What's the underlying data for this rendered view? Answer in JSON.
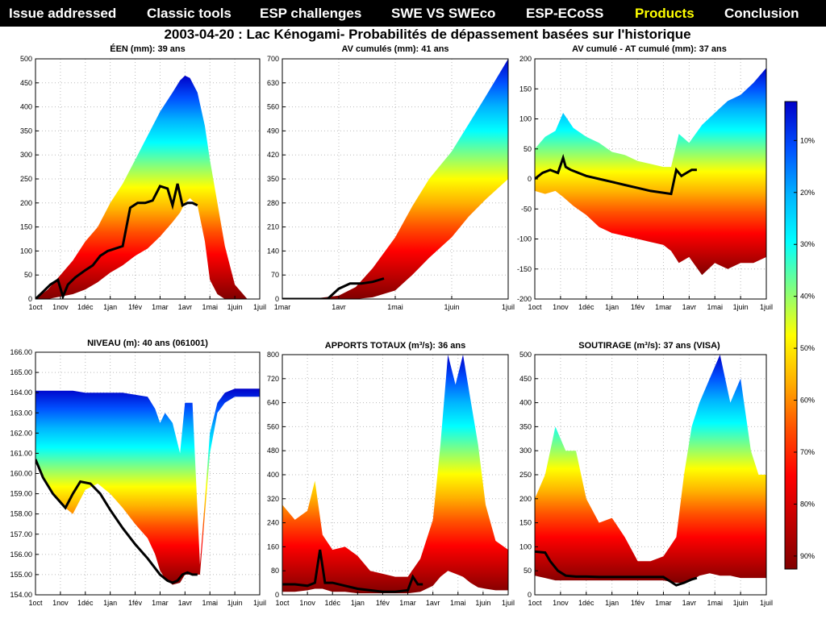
{
  "nav": {
    "items": [
      {
        "label": "Issue addressed",
        "active": false
      },
      {
        "label": "Classic tools",
        "active": false
      },
      {
        "label": "ESP challenges",
        "active": false
      },
      {
        "label": "SWE VS SWEco",
        "active": false
      },
      {
        "label": "ESP-ECoSS",
        "active": false
      },
      {
        "label": "Products",
        "active": true
      },
      {
        "label": "Conclusion",
        "active": false
      }
    ]
  },
  "figure_title": "2003-04-20 : Lac Kénogami- Probabilités de dépassement basées sur l'historique",
  "colors": {
    "nav_bg": "#000000",
    "nav_text": "#ffffff",
    "nav_active": "#ffff00",
    "observed_line": "#000000"
  },
  "chart_data": [
    {
      "type": "area",
      "title": "ÉEN (mm): 39 ans",
      "xticks": [
        "1oct",
        "1nov",
        "1déc",
        "1jan",
        "1fév",
        "1mar",
        "1avr",
        "1mai",
        "1juin",
        "1juil"
      ],
      "yticks": [
        "0",
        "50",
        "100",
        "150",
        "200",
        "250",
        "300",
        "350",
        "400",
        "450",
        "500"
      ],
      "ylim": [
        0,
        500
      ],
      "envelope": {
        "x": [
          0,
          0.5,
          1,
          1.5,
          2,
          2.5,
          3,
          3.5,
          4,
          4.5,
          5,
          5.5,
          5.8,
          6,
          6.2,
          6.5,
          6.8,
          7,
          7.3,
          7.6,
          8,
          8.5,
          9
        ],
        "upper": [
          0,
          20,
          50,
          80,
          120,
          150,
          200,
          240,
          290,
          340,
          390,
          430,
          455,
          465,
          460,
          430,
          360,
          290,
          200,
          110,
          30,
          0,
          0
        ],
        "lower": [
          0,
          0,
          5,
          10,
          20,
          35,
          55,
          70,
          90,
          105,
          130,
          160,
          180,
          200,
          210,
          195,
          120,
          40,
          10,
          0,
          0,
          0,
          0
        ]
      },
      "observed": {
        "x": [
          0,
          0.3,
          0.6,
          0.9,
          1.1,
          1.3,
          1.6,
          2,
          2.3,
          2.6,
          2.9,
          3.2,
          3.5,
          3.8,
          4.1,
          4.4,
          4.7,
          5,
          5.3,
          5.5,
          5.7,
          5.9,
          6.1,
          6.3,
          6.5
        ],
        "y": [
          0,
          15,
          30,
          40,
          5,
          30,
          45,
          60,
          70,
          90,
          100,
          105,
          110,
          190,
          200,
          200,
          205,
          235,
          230,
          195,
          240,
          195,
          200,
          200,
          195
        ]
      }
    },
    {
      "type": "area",
      "title": "AV cumulés (mm): 41 ans",
      "xticks": [
        "1mar",
        "1avr",
        "1mai",
        "1juin",
        "1juil"
      ],
      "yticks": [
        "0",
        "70",
        "140",
        "210",
        "280",
        "350",
        "420",
        "490",
        "560",
        "630",
        "700"
      ],
      "ylim": [
        0,
        700
      ],
      "envelope": {
        "x": [
          0,
          0.5,
          1,
          1.3,
          1.6,
          2,
          2.3,
          2.6,
          3,
          3.3,
          3.6,
          4
        ],
        "upper": [
          0,
          0,
          10,
          35,
          90,
          180,
          270,
          350,
          430,
          510,
          590,
          700
        ],
        "lower": [
          0,
          0,
          0,
          0,
          5,
          25,
          70,
          120,
          180,
          240,
          290,
          350
        ]
      },
      "observed": {
        "x": [
          0,
          0.4,
          0.8,
          1.0,
          1.2,
          1.4,
          1.6,
          1.8
        ],
        "y": [
          0,
          0,
          0,
          30,
          45,
          45,
          50,
          60
        ]
      }
    },
    {
      "type": "area",
      "title": "AV cumulé - AT cumulé (mm): 37 ans",
      "xticks": [
        "1oct",
        "1nov",
        "1déc",
        "1jan",
        "1fév",
        "1mar",
        "1avr",
        "1mai",
        "1juin",
        "1juil"
      ],
      "yticks": [
        "-200",
        "-150",
        "-100",
        "-50",
        "0",
        "50",
        "100",
        "150",
        "200"
      ],
      "ylim": [
        -200,
        200
      ],
      "envelope": {
        "x": [
          0,
          0.4,
          0.8,
          1.1,
          1.5,
          2,
          2.5,
          3,
          3.5,
          4,
          4.5,
          5,
          5.3,
          5.6,
          6,
          6.5,
          7,
          7.5,
          8,
          8.5,
          9
        ],
        "upper": [
          50,
          70,
          80,
          110,
          85,
          70,
          60,
          45,
          40,
          30,
          25,
          20,
          20,
          75,
          60,
          90,
          110,
          130,
          140,
          160,
          185
        ],
        "lower": [
          -20,
          -25,
          -20,
          -30,
          -45,
          -60,
          -80,
          -90,
          -95,
          -100,
          -105,
          -110,
          -120,
          -140,
          -130,
          -160,
          -140,
          -150,
          -140,
          -140,
          -130
        ]
      },
      "observed": {
        "x": [
          0,
          0.3,
          0.6,
          0.9,
          1.1,
          1.2,
          1.4,
          2,
          2.5,
          3,
          3.5,
          4,
          4.5,
          5.3,
          5.5,
          5.7,
          5.9,
          6.1,
          6.3
        ],
        "y": [
          0,
          10,
          15,
          10,
          35,
          20,
          15,
          5,
          0,
          -5,
          -10,
          -15,
          -20,
          -25,
          15,
          5,
          10,
          15,
          15
        ]
      }
    },
    {
      "type": "area",
      "title": "NIVEAU (m): 40 ans (061001)",
      "xticks": [
        "1oct",
        "1nov",
        "1déc",
        "1jan",
        "1fév",
        "1mar",
        "1avr",
        "1mai",
        "1juin",
        "1juil"
      ],
      "yticks": [
        "154.00",
        "155.00",
        "156.00",
        "157.00",
        "158.00",
        "159.00",
        "160.00",
        "161.00",
        "162.00",
        "163.00",
        "164.00",
        "165.00",
        "166.00"
      ],
      "ylim": [
        154,
        166
      ],
      "envelope": {
        "x": [
          0,
          0.5,
          1,
          1.5,
          2,
          2.5,
          3,
          3.5,
          4,
          4.5,
          4.8,
          5,
          5.2,
          5.5,
          5.8,
          6,
          6.3,
          6.6,
          7,
          7.3,
          7.6,
          8,
          8.5,
          9
        ],
        "upper": [
          164.1,
          164.1,
          164.1,
          164.1,
          164.0,
          164.0,
          164.0,
          164.0,
          163.9,
          163.8,
          163.2,
          162.5,
          163.0,
          162.5,
          161.0,
          163.5,
          163.5,
          155.5,
          162.0,
          163.5,
          164.0,
          164.2,
          164.2,
          164.2
        ],
        "lower": [
          160.5,
          159.5,
          158.5,
          158.0,
          159.2,
          159.5,
          159.0,
          158.3,
          157.5,
          156.8,
          156.0,
          155.2,
          154.8,
          154.5,
          154.6,
          155.0,
          155.0,
          155.0,
          161.0,
          163.0,
          163.5,
          163.8,
          163.8,
          163.8
        ]
      },
      "observed": {
        "x": [
          0,
          0.3,
          0.7,
          1.2,
          1.5,
          1.8,
          2.2,
          2.6,
          3,
          3.5,
          4,
          4.5,
          5,
          5.3,
          5.5,
          5.7,
          5.9,
          6.1,
          6.3,
          6.5
        ],
        "y": [
          160.7,
          159.8,
          159.0,
          158.3,
          159.0,
          159.6,
          159.5,
          159.0,
          158.2,
          157.3,
          156.5,
          155.8,
          155.0,
          154.7,
          154.6,
          154.7,
          155.0,
          155.1,
          155.0,
          155.0
        ]
      }
    },
    {
      "type": "area",
      "title": "APPORTS TOTAUX (m³/s): 36 ans",
      "xticks": [
        "1oct",
        "1nov",
        "1déc",
        "1jan",
        "1fév",
        "1mar",
        "1avr",
        "1mai",
        "1juin",
        "1juil"
      ],
      "yticks": [
        "0",
        "80",
        "160",
        "240",
        "320",
        "400",
        "480",
        "560",
        "640",
        "720",
        "800"
      ],
      "ylim": [
        0,
        800
      ],
      "envelope": {
        "x": [
          0,
          0.5,
          1,
          1.3,
          1.6,
          2,
          2.5,
          3,
          3.5,
          4,
          4.5,
          5,
          5.5,
          6,
          6.3,
          6.6,
          6.9,
          7.2,
          7.5,
          7.8,
          8.1,
          8.5,
          9
        ],
        "upper": [
          300,
          250,
          280,
          380,
          200,
          150,
          160,
          130,
          80,
          70,
          60,
          60,
          120,
          250,
          500,
          800,
          700,
          800,
          650,
          500,
          300,
          180,
          150
        ],
        "lower": [
          10,
          10,
          15,
          20,
          20,
          10,
          10,
          5,
          5,
          5,
          5,
          5,
          10,
          30,
          60,
          80,
          70,
          60,
          40,
          25,
          20,
          15,
          15
        ]
      },
      "observed": {
        "x": [
          0,
          0.5,
          1,
          1.3,
          1.5,
          1.7,
          2,
          2.5,
          3,
          3.5,
          4,
          4.5,
          5,
          5.2,
          5.4,
          5.6
        ],
        "y": [
          35,
          35,
          30,
          40,
          150,
          40,
          40,
          30,
          20,
          15,
          10,
          10,
          15,
          60,
          35,
          35
        ]
      }
    },
    {
      "type": "area",
      "title": "SOUTIRAGE (m³/s): 37 ans (VISA)",
      "xticks": [
        "1oct",
        "1nov",
        "1déc",
        "1jan",
        "1fév",
        "1mar",
        "1avr",
        "1mai",
        "1juin",
        "1juil"
      ],
      "yticks": [
        "0",
        "50",
        "100",
        "150",
        "200",
        "250",
        "300",
        "350",
        "400",
        "450",
        "500"
      ],
      "ylim": [
        0,
        500
      ],
      "envelope": {
        "x": [
          0,
          0.4,
          0.8,
          1.2,
          1.6,
          2,
          2.5,
          3,
          3.5,
          4,
          4.5,
          5,
          5.5,
          5.8,
          6.1,
          6.4,
          6.8,
          7.2,
          7.6,
          8,
          8.4,
          8.7,
          9
        ],
        "upper": [
          200,
          250,
          350,
          300,
          300,
          200,
          150,
          160,
          120,
          70,
          70,
          80,
          120,
          250,
          350,
          400,
          450,
          500,
          400,
          450,
          300,
          250,
          250
        ],
        "lower": [
          40,
          35,
          30,
          30,
          30,
          30,
          30,
          30,
          30,
          30,
          30,
          30,
          25,
          25,
          30,
          40,
          45,
          40,
          40,
          35,
          35,
          35,
          35
        ]
      },
      "observed": {
        "x": [
          0,
          0.4,
          0.6,
          0.9,
          1.2,
          1.6,
          2,
          2.5,
          3,
          3.5,
          4,
          4.5,
          5,
          5.5,
          5.8,
          6.1,
          6.3
        ],
        "y": [
          90,
          88,
          70,
          50,
          40,
          38,
          38,
          37,
          37,
          37,
          37,
          37,
          37,
          20,
          25,
          32,
          35
        ]
      }
    }
  ],
  "colorbar": {
    "ticks": [
      "10%",
      "20%",
      "30%",
      "40%",
      "50%",
      "60%",
      "70%",
      "80%",
      "90%"
    ],
    "stops": [
      "#0000c8",
      "#0050ff",
      "#00b4ff",
      "#00ffff",
      "#80ff80",
      "#ffff00",
      "#ffb000",
      "#ff5000",
      "#ff0000",
      "#c00000",
      "#800000"
    ]
  }
}
